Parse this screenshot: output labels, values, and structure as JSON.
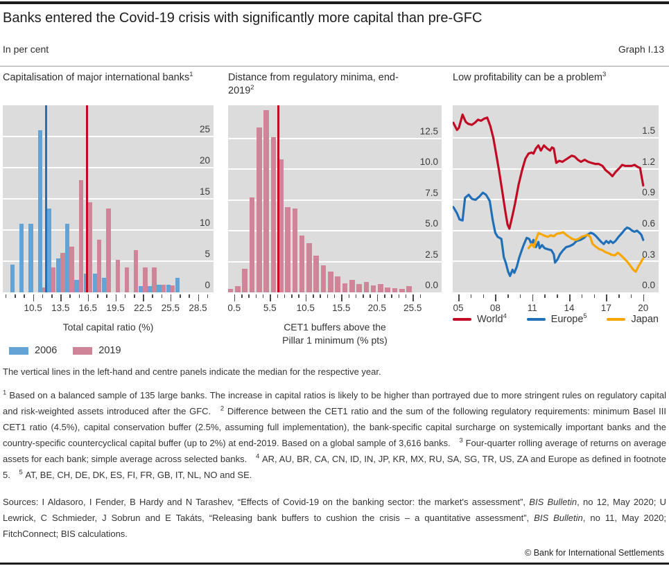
{
  "page": {
    "title": "Banks entered the Covid-19 crisis with significantly more capital than pre-GFC",
    "units_label": "In per cent",
    "graph_label": "Graph I.13",
    "note": "The vertical lines in the left-hand and centre panels indicate the median for the respective year.",
    "copyright": "© Bank for International Settlements"
  },
  "colors": {
    "plot_bg": "#dcdcdc",
    "grid": "#ffffff",
    "bar_2006": "#64a3d5",
    "bar_2019": "#cf8498",
    "median_2006": "#1f70b8",
    "median_2019": "#c10b25",
    "world": "#c10b25",
    "europe": "#1f70b8",
    "japan": "#f7a600"
  },
  "footnotes": [
    {
      "marker": "1",
      "text": "Based on a balanced sample of 135 large banks. The increase in capital ratios is likely to be higher than portrayed due to more stringent rules on regulatory capital and risk-weighted assets introduced after the GFC."
    },
    {
      "marker": "2",
      "text": "Difference between the CET1 ratio and the sum of the following regulatory requirements: minimum Basel III CET1 ratio (4.5%), capital conservation buffer (2.5%, assuming full implementation), the bank-specific capital surcharge on systemically important banks and the country-specific countercyclical capital buffer (up to 2%) at end-2019. Based on a global sample of 3,616 banks."
    },
    {
      "marker": "3",
      "text": "Four-quarter rolling average of returns on average assets for each bank; simple average across selected banks."
    },
    {
      "marker": "4",
      "text": "AR, AU, BR, CA, CN, ID, IN, JP, KR, MX, RU, SA, SG, TR, US, ZA and Europe as defined in footnote 5."
    },
    {
      "marker": "5",
      "text": "AT, BE, CH, DE, DK, ES, FI, FR, GB, IT, NL, NO and SE."
    }
  ],
  "sources": [
    {
      "t": "Sources: I Aldasoro, I Fender, B Hardy and N Tarashev, “Effects of Covid-19 on the banking sector: the market's assessment”, "
    },
    {
      "i": "BIS Bulletin"
    },
    {
      "t": ", no 12, May 2020; U Lewrick, C Schmieder, J Sobrun and E Takáts, “Releasing bank buffers to cushion the crisis – a quantitative assessment”, "
    },
    {
      "i": "BIS Bulletin"
    },
    {
      "t": ", no 11, May 2020; FitchConnect; BIS calculations."
    }
  ],
  "chart_data": [
    {
      "type": "bar",
      "title_segments": [
        {
          "t": "Capitalisation of major international banks"
        },
        {
          "s": "1"
        }
      ],
      "xlabel_lines": [
        "Total capital ratio (%)"
      ],
      "categories": [
        8.5,
        9.5,
        10.5,
        11.5,
        12.5,
        13.5,
        14.5,
        15.5,
        16.5,
        17.5,
        18.5,
        19.5,
        20.5,
        21.5,
        22.5,
        23.5,
        24.5,
        25.5,
        26.5
      ],
      "series": [
        {
          "key": "y2006",
          "name": "2006",
          "color": "bar_2006",
          "values": [
            4.5,
            11,
            11,
            26,
            13.5,
            5.5,
            11,
            2,
            3,
            3,
            2.3,
            0,
            0,
            0,
            1,
            1,
            1.2,
            1.2,
            2.3
          ]
        },
        {
          "key": "y2019",
          "name": "2019",
          "color": "bar_2019",
          "values": [
            0,
            0,
            0,
            0.8,
            4,
            6.3,
            7.3,
            18,
            14.5,
            8.5,
            13.5,
            5.2,
            4,
            6.8,
            4,
            4,
            1.2,
            1.1,
            0
          ]
        }
      ],
      "medians": [
        {
          "x": 11.95,
          "color": "median_2006",
          "label": "median 2006"
        },
        {
          "x": 16.4,
          "color": "median_2019",
          "label": "median 2019"
        }
      ],
      "xlim": [
        7.2,
        30.2
      ],
      "ylim": [
        0,
        30
      ],
      "yticks": [
        {
          "v": 0,
          "l": "0"
        },
        {
          "v": 5,
          "l": "5"
        },
        {
          "v": 10,
          "l": "10"
        },
        {
          "v": 15,
          "l": "15"
        },
        {
          "v": 20,
          "l": "20"
        },
        {
          "v": 25,
          "l": "25"
        }
      ],
      "xticks_minor": [
        7.5,
        8.5,
        9.5,
        10.5,
        11.5,
        12.5,
        13.5,
        14.5,
        15.5,
        16.5,
        17.5,
        18.5,
        19.5,
        20.5,
        21.5,
        22.5,
        23.5,
        24.5,
        25.5,
        26.5,
        27.5,
        28.5,
        29.5
      ],
      "xticks_major": [
        {
          "v": 10.5,
          "l": "10.5"
        },
        {
          "v": 13.5,
          "l": "13.5"
        },
        {
          "v": 16.5,
          "l": "16.5"
        },
        {
          "v": 19.5,
          "l": "19.5"
        },
        {
          "v": 22.5,
          "l": "22.5"
        },
        {
          "v": 25.5,
          "l": "25.5"
        },
        {
          "v": 28.5,
          "l": "28.5"
        }
      ]
    },
    {
      "type": "bar",
      "title_segments": [
        {
          "t": "Distance from regulatory minima, end-2019"
        },
        {
          "s": "2"
        }
      ],
      "xlabel_lines": [
        "CET1 buffers above the",
        "Pillar 1 minimum (% pts)"
      ],
      "categories": [
        0,
        1,
        2,
        3,
        4,
        5,
        6,
        7,
        8,
        9,
        10,
        11,
        12,
        13,
        14,
        15,
        16,
        17,
        18,
        19,
        20,
        21,
        22,
        23,
        24,
        25
      ],
      "series": [
        {
          "key": "y2019",
          "name": "2019",
          "color": "bar_2019",
          "values": [
            0.3,
            0.5,
            1.9,
            7.7,
            13.4,
            14.8,
            12.6,
            10.8,
            6.9,
            6.8,
            4.6,
            4.0,
            3.0,
            2.2,
            1.7,
            1.3,
            0.75,
            1.0,
            0.65,
            0.85,
            0.55,
            0.65,
            0.4,
            0.35,
            0.3,
            0.5
          ]
        }
      ],
      "medians": [
        {
          "x": 6.7,
          "color": "median_2019",
          "label": "median 2019"
        }
      ],
      "xlim": [
        -0.35,
        29.55
      ],
      "ylim": [
        0,
        15.2
      ],
      "yticks": [
        {
          "v": 0,
          "l": "0.0"
        },
        {
          "v": 2.5,
          "l": "2.5"
        },
        {
          "v": 5,
          "l": "5.0"
        },
        {
          "v": 7.5,
          "l": "7.5"
        },
        {
          "v": 10,
          "l": "10.0"
        },
        {
          "v": 12.5,
          "l": "12.5"
        }
      ],
      "xticks_minor": [
        0.5,
        1.5,
        2.5,
        3.5,
        4.5,
        5.5,
        6.5,
        7.5,
        8.5,
        9.5,
        10.5,
        11.5,
        12.5,
        13.5,
        14.5,
        15.5,
        16.5,
        17.5,
        18.5,
        19.5,
        20.5,
        21.5,
        22.5,
        23.5,
        24.5,
        25.5,
        26.5
      ],
      "xticks_major": [
        {
          "v": 0.5,
          "l": "0.5"
        },
        {
          "v": 5.5,
          "l": "5.5"
        },
        {
          "v": 10.5,
          "l": "10.5"
        },
        {
          "v": 15.5,
          "l": "15.5"
        },
        {
          "v": 20.5,
          "l": "20.5"
        },
        {
          "v": 25.5,
          "l": "25.5"
        }
      ]
    },
    {
      "type": "line",
      "title_segments": [
        {
          "t": "Low profitability can be a problem"
        },
        {
          "s": "3"
        }
      ],
      "xlim": [
        2004.55,
        2021.25
      ],
      "ylim": [
        0,
        1.82
      ],
      "yticks": [
        {
          "v": 0,
          "l": "0.0"
        },
        {
          "v": 0.3,
          "l": "0.3"
        },
        {
          "v": 0.6,
          "l": "0.6"
        },
        {
          "v": 0.9,
          "l": "0.9"
        },
        {
          "v": 1.2,
          "l": "1.2"
        },
        {
          "v": 1.5,
          "l": "1.5"
        }
      ],
      "xticks_minor": [
        2005,
        2006,
        2007,
        2008,
        2009,
        2010,
        2011,
        2012,
        2013,
        2014,
        2015,
        2016,
        2017,
        2018,
        2019,
        2020
      ],
      "xticks_major": [
        {
          "v": 2005,
          "l": "05"
        },
        {
          "v": 2008,
          "l": "08"
        },
        {
          "v": 2011,
          "l": "11"
        },
        {
          "v": 2014,
          "l": "14"
        },
        {
          "v": 2017,
          "l": "17"
        },
        {
          "v": 2020,
          "l": "20"
        }
      ],
      "series": [
        {
          "key": "world",
          "color": "world",
          "label_segments": [
            {
              "t": "World"
            },
            {
              "s": "4"
            }
          ],
          "x": [
            2004.6,
            2004.9,
            2005.05,
            2005.35,
            2005.6,
            2005.8,
            2006.1,
            2006.35,
            2006.6,
            2006.85,
            2007.1,
            2007.35,
            2007.6,
            2007.85,
            2008.1,
            2008.3,
            2008.55,
            2008.8,
            2009.0,
            2009.15,
            2009.4,
            2009.6,
            2009.9,
            2010.2,
            2010.45,
            2010.7,
            2010.95,
            2011.1,
            2011.3,
            2011.5,
            2011.7,
            2011.95,
            2012.2,
            2012.45,
            2012.6,
            2012.75,
            2012.95,
            2013.2,
            2013.45,
            2013.7,
            2013.95,
            2014.2,
            2014.45,
            2014.7,
            2014.95,
            2015.25,
            2015.55,
            2015.8,
            2016.1,
            2016.4,
            2016.7,
            2016.95,
            2017.25,
            2017.5,
            2017.75,
            2018.0,
            2018.3,
            2018.55,
            2018.8,
            2019.05,
            2019.3,
            2019.55,
            2019.75,
            2020.0
          ],
          "y": [
            1.65,
            1.58,
            1.6,
            1.73,
            1.66,
            1.64,
            1.63,
            1.65,
            1.68,
            1.67,
            1.69,
            1.7,
            1.62,
            1.5,
            1.33,
            1.19,
            1.0,
            0.8,
            0.66,
            0.62,
            0.75,
            0.86,
            1.05,
            1.2,
            1.3,
            1.35,
            1.36,
            1.35,
            1.4,
            1.43,
            1.38,
            1.43,
            1.4,
            1.38,
            1.41,
            1.4,
            1.26,
            1.28,
            1.27,
            1.29,
            1.31,
            1.33,
            1.32,
            1.29,
            1.27,
            1.29,
            1.27,
            1.26,
            1.25,
            1.25,
            1.23,
            1.19,
            1.16,
            1.13,
            1.17,
            1.2,
            1.24,
            1.23,
            1.23,
            1.23,
            1.24,
            1.22,
            1.21,
            1.04
          ]
        },
        {
          "key": "europe",
          "color": "europe",
          "label_segments": [
            {
              "t": "Europe"
            },
            {
              "s": "5"
            }
          ],
          "x": [
            2004.6,
            2004.9,
            2005.1,
            2005.35,
            2005.55,
            2005.85,
            2006.1,
            2006.4,
            2006.7,
            2007.0,
            2007.25,
            2007.55,
            2007.8,
            2008.0,
            2008.2,
            2008.5,
            2008.7,
            2008.85,
            2009.05,
            2009.2,
            2009.4,
            2009.55,
            2009.75,
            2009.95,
            2010.15,
            2010.3,
            2010.55,
            2010.75,
            2010.95,
            2011.1,
            2011.3,
            2011.5,
            2011.6,
            2011.8,
            2012.0,
            2012.25,
            2012.55,
            2012.75,
            2012.85,
            2013.05,
            2013.25,
            2013.5,
            2013.75,
            2014.05,
            2014.35,
            2014.6,
            2014.9,
            2015.2,
            2015.45,
            2015.75,
            2015.95,
            2016.15,
            2016.3,
            2016.6,
            2016.8,
            2017.0,
            2017.2,
            2017.35,
            2017.55,
            2017.75,
            2018.0,
            2018.3,
            2018.5,
            2018.7,
            2018.9,
            2019.1,
            2019.3,
            2019.5,
            2019.7,
            2019.85,
            2020.0
          ],
          "y": [
            0.83,
            0.77,
            0.71,
            0.7,
            0.92,
            0.95,
            0.91,
            0.9,
            0.93,
            0.97,
            0.95,
            0.89,
            0.7,
            0.58,
            0.54,
            0.52,
            0.34,
            0.29,
            0.2,
            0.16,
            0.22,
            0.19,
            0.25,
            0.34,
            0.41,
            0.46,
            0.53,
            0.52,
            0.47,
            0.51,
            0.44,
            0.49,
            0.43,
            0.46,
            0.43,
            0.42,
            0.41,
            0.37,
            0.29,
            0.32,
            0.37,
            0.41,
            0.44,
            0.45,
            0.47,
            0.5,
            0.51,
            0.53,
            0.56,
            0.58,
            0.57,
            0.55,
            0.53,
            0.49,
            0.47,
            0.5,
            0.48,
            0.5,
            0.48,
            0.5,
            0.54,
            0.58,
            0.61,
            0.63,
            0.62,
            0.6,
            0.59,
            0.6,
            0.58,
            0.56,
            0.51
          ]
        },
        {
          "key": "japan",
          "color": "japan",
          "label_segments": [
            {
              "t": "Japan"
            }
          ],
          "x": [
            2010.7,
            2010.95,
            2011.15,
            2011.3,
            2011.5,
            2011.75,
            2012.0,
            2012.25,
            2012.5,
            2012.75,
            2013.0,
            2013.25,
            2013.5,
            2013.75,
            2014.0,
            2014.25,
            2014.5,
            2014.75,
            2015.0,
            2015.25,
            2015.5,
            2015.7,
            2015.9,
            2016.2,
            2016.45,
            2016.7,
            2016.95,
            2017.2,
            2017.45,
            2017.7,
            2017.95,
            2018.2,
            2018.45,
            2018.7,
            2018.95,
            2019.2,
            2019.4,
            2019.6,
            2019.8,
            2020.0
          ],
          "y": [
            0.43,
            0.47,
            0.44,
            0.51,
            0.575,
            0.565,
            0.55,
            0.54,
            0.555,
            0.545,
            0.57,
            0.575,
            0.585,
            0.56,
            0.54,
            0.52,
            0.51,
            0.52,
            0.54,
            0.55,
            0.56,
            0.54,
            0.47,
            0.44,
            0.42,
            0.41,
            0.39,
            0.38,
            0.365,
            0.36,
            0.385,
            0.36,
            0.33,
            0.3,
            0.26,
            0.22,
            0.2,
            0.25,
            0.29,
            0.33
          ]
        }
      ]
    }
  ]
}
